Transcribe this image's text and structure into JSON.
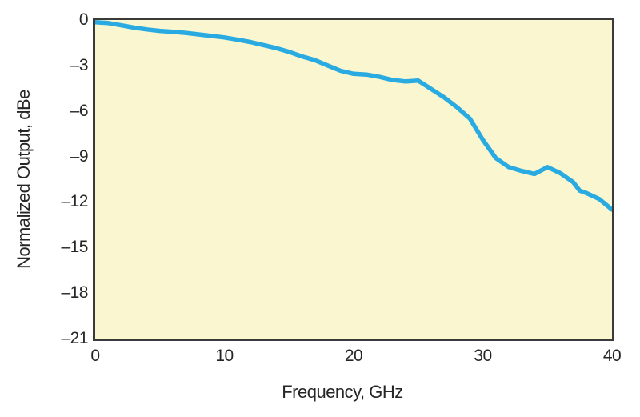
{
  "figure": {
    "background": "#FFFFFF",
    "plot_background": "#FAF6CF",
    "border_color": "#3A3A3A",
    "text_color": "#262626",
    "line_color": "#29ABE2"
  },
  "chart_data": {
    "type": "line",
    "title": "",
    "xlabel": "Frequency, GHz",
    "ylabel": "Normalized Output, dBe",
    "xlim": [
      0,
      40
    ],
    "ylim": [
      -21,
      0
    ],
    "grid": false,
    "legend": "none",
    "x_ticks": {
      "values": [
        0,
        10,
        20,
        30,
        40
      ],
      "labels": [
        "0",
        "10",
        "20",
        "30",
        "40"
      ]
    },
    "y_ticks": {
      "values": [
        0,
        -3,
        -6,
        -9,
        -12,
        -15,
        -18,
        -21
      ],
      "labels": [
        "0",
        "–3",
        "–6",
        "–9",
        "–12",
        "–15",
        "–18",
        "–21"
      ]
    },
    "series": [
      {
        "name": "normalized-output",
        "color": "#29ABE2",
        "stroke_width": 5.5,
        "x": [
          0,
          1,
          2,
          3,
          4,
          5,
          6,
          7,
          8,
          9,
          10,
          11,
          12,
          13,
          14,
          15,
          16,
          17,
          18,
          19,
          20,
          21,
          22,
          23,
          24,
          25,
          26,
          27,
          28,
          29,
          30,
          31,
          32,
          33,
          34,
          35,
          36,
          37,
          37.5,
          38,
          39,
          40
        ],
        "y": [
          0,
          -0.2,
          -0.35,
          -0.5,
          -0.62,
          -0.72,
          -0.78,
          -0.85,
          -0.95,
          -1.05,
          -1.15,
          -1.3,
          -1.45,
          -1.65,
          -1.85,
          -2.1,
          -2.4,
          -2.65,
          -3.0,
          -3.35,
          -3.55,
          -3.6,
          -3.75,
          -3.95,
          -4.05,
          -4.0,
          -4.55,
          -5.1,
          -5.75,
          -6.5,
          -7.9,
          -9.1,
          -9.7,
          -9.95,
          -10.15,
          -9.7,
          -10.1,
          -10.7,
          -11.25,
          -11.4,
          -11.8,
          -12.5
        ]
      }
    ]
  }
}
